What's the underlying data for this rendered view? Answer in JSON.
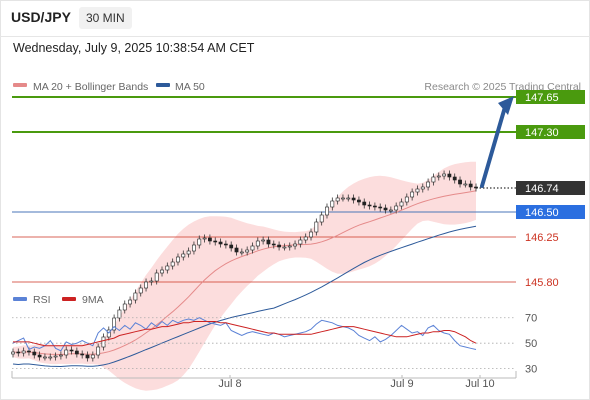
{
  "header": {
    "symbol": "USD/JPY",
    "timeframe": "30 MIN",
    "datetime": "Wednesday, July 9, 2025 10:38:54 AM CET"
  },
  "legend": {
    "ma20_label": "MA 20 + Bollinger Bands",
    "ma50_label": "MA 50",
    "credit": "Research © 2025 Trading Central",
    "rsi_label": "RSI",
    "rsi_ma_label": "9MA"
  },
  "colors": {
    "ma20": "#e58a8a",
    "ma50": "#2d5a9a",
    "bands_fill": "#fbd7d7",
    "resistance": "#4a9a0e",
    "support": "#cc3322",
    "current_price_box": "#333333",
    "pivot_box": "#2b6fe0",
    "arrow": "#2d5a9a",
    "rsi": "#5b82d6",
    "rsi_ma": "#cc2222"
  },
  "chart_data": [
    {
      "type": "candlestick",
      "symbol": "USD/JPY",
      "timeframe": "30 MIN",
      "ylim": [
        145.4,
        147.8
      ],
      "x_tick_labels": [
        "Jul 8",
        "Jul 9",
        "Jul 10"
      ],
      "closes": [
        145.1,
        145.09,
        145.11,
        145.1,
        145.07,
        145.05,
        145.05,
        145.05,
        145.06,
        145.07,
        145.12,
        145.11,
        145.08,
        145.07,
        145.04,
        145.07,
        145.15,
        145.25,
        145.32,
        145.44,
        145.52,
        145.58,
        145.62,
        145.69,
        145.74,
        145.8,
        145.81,
        145.89,
        145.92,
        145.96,
        146.0,
        146.05,
        146.08,
        146.11,
        146.17,
        146.23,
        146.24,
        146.21,
        146.2,
        146.18,
        146.17,
        146.14,
        146.1,
        146.1,
        146.12,
        146.16,
        146.21,
        146.22,
        146.18,
        146.17,
        146.15,
        146.15,
        146.16,
        146.18,
        146.22,
        146.25,
        146.3,
        146.4,
        146.47,
        146.55,
        146.61,
        146.64,
        146.64,
        146.64,
        146.62,
        146.6,
        146.57,
        146.56,
        146.55,
        146.54,
        146.52,
        146.52,
        146.56,
        146.6,
        146.65,
        146.7,
        146.73,
        146.75,
        146.8,
        146.85,
        146.86,
        146.88,
        146.85,
        146.82,
        146.78,
        146.78,
        146.75,
        146.74
      ],
      "series": [
        {
          "name": "MA 20 + Bollinger Bands"
        },
        {
          "name": "MA 50"
        }
      ],
      "levels": [
        {
          "price": 147.65,
          "label": "147.65",
          "kind": "resistance"
        },
        {
          "price": 147.3,
          "label": "147.30",
          "kind": "resistance"
        },
        {
          "price": 146.74,
          "label": "146.74",
          "kind": "current"
        },
        {
          "price": 146.5,
          "label": "146.50",
          "kind": "pivot"
        },
        {
          "price": 146.25,
          "label": "146.25",
          "kind": "support"
        },
        {
          "price": 145.8,
          "label": "145.80",
          "kind": "support"
        }
      ],
      "forecast": "up"
    },
    {
      "type": "line",
      "title": "RSI",
      "ylim": [
        25,
        80
      ],
      "y_ticks": [
        30,
        50,
        70
      ],
      "series": [
        {
          "name": "RSI",
          "values": [
            50,
            52,
            54,
            45,
            47,
            46,
            48,
            52,
            46,
            44,
            51,
            49,
            50,
            52,
            50,
            48,
            58,
            62,
            58,
            63,
            60,
            64,
            61,
            66,
            64,
            61,
            66,
            63,
            67,
            64,
            68,
            66,
            68,
            69,
            68,
            70,
            68,
            66,
            65,
            64,
            66,
            60,
            58,
            56,
            58,
            59,
            58,
            57,
            56,
            58,
            57,
            55,
            56,
            57,
            58,
            59,
            61,
            65,
            68,
            67,
            66,
            64,
            63,
            62,
            60,
            56,
            54,
            52,
            55,
            51,
            53,
            56,
            60,
            64,
            61,
            58,
            59,
            56,
            62,
            64,
            60,
            58,
            57,
            52,
            48,
            47,
            46,
            45
          ]
        },
        {
          "name": "9MA",
          "values": [
            51,
            51,
            51,
            51,
            50,
            49,
            48,
            48,
            48,
            48,
            48,
            48,
            48,
            48,
            49,
            50,
            51,
            52,
            53,
            54,
            56,
            57,
            58,
            59,
            60,
            61,
            61,
            62,
            63,
            63,
            64,
            65,
            66,
            66,
            67,
            67,
            67,
            67,
            67,
            66,
            66,
            65,
            64,
            63,
            62,
            61,
            60,
            59,
            58,
            58,
            57,
            57,
            57,
            57,
            57,
            57,
            57,
            58,
            59,
            60,
            61,
            62,
            63,
            63,
            63,
            62,
            61,
            60,
            59,
            58,
            57,
            56,
            55,
            55,
            55,
            56,
            57,
            58,
            58,
            59,
            59,
            60,
            60,
            59,
            57,
            55,
            52,
            50
          ]
        }
      ]
    }
  ]
}
